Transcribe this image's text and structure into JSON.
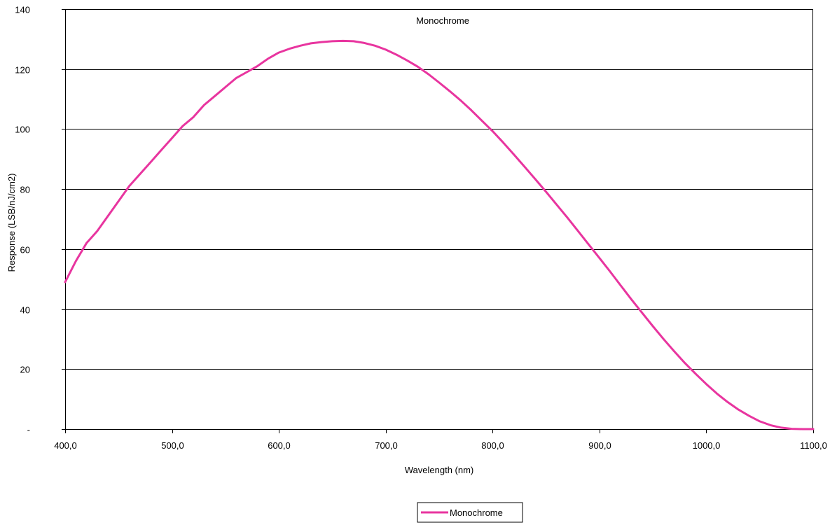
{
  "chart_data": {
    "type": "line",
    "title": "Monochrome",
    "xlabel": "Wavelength (nm)",
    "ylabel": "Response (LSB/nJ/cm2)",
    "xlim": [
      400,
      1100
    ],
    "ylim": [
      0,
      140
    ],
    "grid": "horizontal",
    "legend_position": "bottom",
    "x_ticks": [
      400,
      500,
      600,
      700,
      800,
      900,
      1000,
      1100
    ],
    "x_tick_labels": [
      "400,0",
      "500,0",
      "600,0",
      "700,0",
      "800,0",
      "900,0",
      "1000,0",
      "1100,0"
    ],
    "y_ticks": [
      0,
      20,
      40,
      60,
      80,
      100,
      120,
      140
    ],
    "y_tick_labels": [
      "-",
      "20",
      "40",
      "60",
      "80",
      "100",
      "120",
      "140"
    ],
    "series": [
      {
        "name": "Monochrome",
        "color": "#e8359f",
        "x": [
          400,
          410,
          420,
          430,
          440,
          450,
          460,
          470,
          480,
          490,
          500,
          510,
          520,
          530,
          540,
          550,
          560,
          570,
          580,
          590,
          600,
          610,
          620,
          630,
          640,
          650,
          660,
          670,
          680,
          690,
          700,
          710,
          720,
          730,
          740,
          750,
          760,
          770,
          780,
          790,
          800,
          810,
          820,
          830,
          840,
          850,
          860,
          870,
          880,
          890,
          900,
          910,
          920,
          930,
          940,
          950,
          960,
          970,
          980,
          990,
          1000,
          1010,
          1020,
          1030,
          1040,
          1050,
          1060,
          1070,
          1080,
          1090,
          1100
        ],
        "y": [
          49,
          56,
          62,
          66,
          71,
          76,
          81,
          85,
          89,
          93,
          97,
          101,
          104,
          108,
          111,
          114,
          117,
          119,
          121,
          123.5,
          125.5,
          126.8,
          127.8,
          128.6,
          129,
          129.3,
          129.4,
          129.3,
          128.7,
          127.8,
          126.5,
          124.8,
          122.9,
          120.8,
          118.3,
          115.5,
          112.6,
          109.6,
          106.3,
          102.8,
          99.3,
          95.5,
          91.5,
          87.4,
          83.3,
          79.1,
          74.8,
          70.5,
          66,
          61.5,
          57,
          52.5,
          47.8,
          43.2,
          38.7,
          34.3,
          30,
          25.9,
          22,
          18.4,
          15,
          11.8,
          9,
          6.5,
          4.4,
          2.6,
          1.3,
          0.5,
          0.1,
          0,
          0
        ]
      }
    ]
  }
}
